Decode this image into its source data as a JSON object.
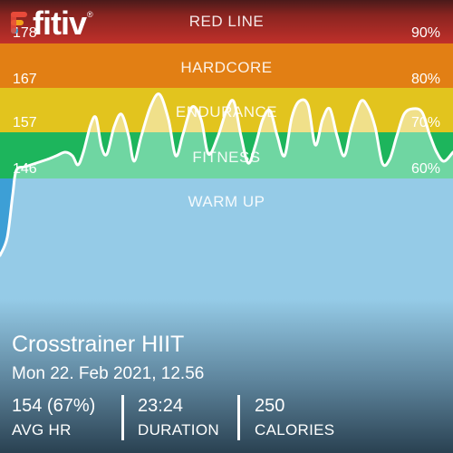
{
  "brand": {
    "name": "fitiv",
    "reg": "®"
  },
  "zones": [
    {
      "key": "red-line",
      "label": "RED LINE",
      "hr": "178",
      "pct": "90%",
      "color": "#bf2b21"
    },
    {
      "key": "hardcore",
      "label": "HARDCORE",
      "hr": "167",
      "pct": "80%",
      "color": "#e07f12"
    },
    {
      "key": "endurance",
      "label": "ENDURANCE",
      "hr": "157",
      "pct": "70%",
      "color": "#e0c21c"
    },
    {
      "key": "fitness",
      "label": "FITNESS",
      "hr": "146",
      "pct": "60%",
      "color": "#1bb45a"
    },
    {
      "key": "warm-up",
      "label": "WARM UP",
      "hr": "",
      "pct": "",
      "color": "#3c9fd6"
    }
  ],
  "workout": {
    "title": "Crosstrainer HIIT",
    "date": "Mon 22. Feb 2021, 12.56"
  },
  "stats": [
    {
      "value": "154 (67%)",
      "label": "AVG HR"
    },
    {
      "value": "23:24",
      "label": "DURATION"
    },
    {
      "value": "250",
      "label": "CALORIES"
    }
  ]
}
